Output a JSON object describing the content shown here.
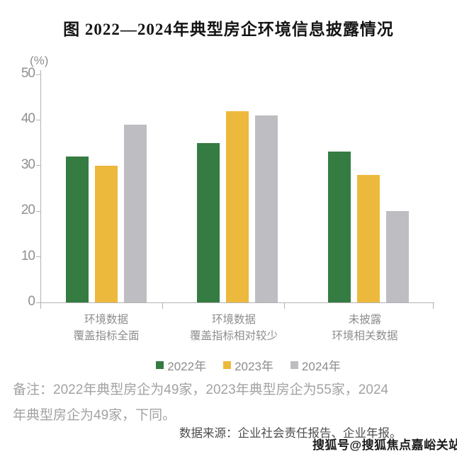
{
  "title": "图  2022—2024年典型房企环境信息披露情况",
  "chart_data": {
    "type": "bar",
    "categories": [
      "环境数据\n覆盖指标全面",
      "环境数据\n覆盖指标相对较少",
      "未披露\n环境相关数据"
    ],
    "series": [
      {
        "name": "2022年",
        "color": "#347C41",
        "values": [
          32,
          35,
          33
        ]
      },
      {
        "name": "2023年",
        "color": "#EDB93C",
        "values": [
          30,
          42,
          28
        ]
      },
      {
        "name": "2024年",
        "color": "#BEBEC2",
        "values": [
          39,
          41,
          20
        ]
      }
    ],
    "ylabel": "(%)",
    "yticks": [
      0,
      10,
      20,
      30,
      40,
      50
    ],
    "ylim": [
      0,
      50
    ],
    "grid": false,
    "legend_position": "bottom",
    "axis_color": "#b3b3b3"
  },
  "note": {
    "line1": "备注：2022年典型房企为49家，2023年典型房企为55家，2024",
    "line2": "年典型房企为49家，下同。"
  },
  "source": "数据来源：企业社会责任报告、企业年报。",
  "watermark": "搜狐号@搜狐焦点嘉峪关站"
}
